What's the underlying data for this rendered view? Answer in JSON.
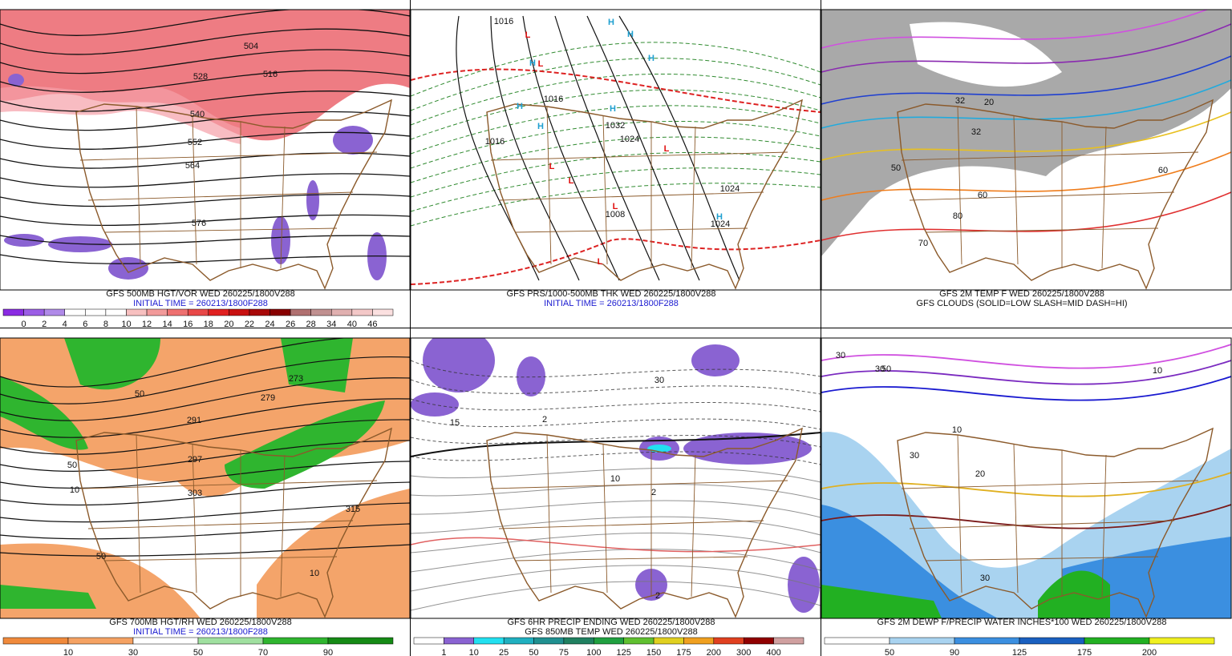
{
  "panels": [
    {
      "caption": [
        "GFS 500MB HGT/VOR WED 260225/1800V288",
        "INITIAL TIME = 260213/1800F288"
      ],
      "colorbar": [
        "0",
        "2",
        "4",
        "6",
        "8",
        "10",
        "12",
        "14",
        "16",
        "18",
        "20",
        "22",
        "24",
        "26",
        "28",
        "34",
        "40",
        "46"
      ],
      "labels": [
        "504",
        "516",
        "528",
        "540",
        "552",
        "564",
        "576"
      ]
    },
    {
      "caption": [
        "GFS PRS/1000-500MB THK WED 260225/1800V288",
        "INITIAL TIME = 260213/1800F288"
      ],
      "labels": [
        "1016",
        "1016",
        "1016",
        "1032",
        "1024",
        "1008",
        "1024",
        "1024"
      ],
      "symbols": [
        "L",
        "L",
        "L",
        "L",
        "L",
        "L",
        "L",
        "H",
        "H",
        "H",
        "H",
        "H",
        "H",
        "H",
        "H"
      ]
    },
    {
      "caption": [
        "GFS 2M TEMP F WED 260225/1800V288",
        "GFS CLOUDS (SOLID=LOW SLASH=MID DASH=HI)"
      ],
      "labels": [
        "32",
        "20",
        "32",
        "60",
        "70",
        "50",
        "80",
        "60"
      ]
    },
    {
      "caption": [
        "GFS 700MB HGT/RH WED 260225/1800V288",
        "INITIAL TIME = 260213/1800F288"
      ],
      "colorbar": [
        "10",
        "30",
        "50",
        "70",
        "90"
      ],
      "labels": [
        "50",
        "273",
        "279",
        "291",
        "297",
        "303",
        "315",
        "10",
        "50",
        "50",
        "10"
      ]
    },
    {
      "caption": [
        "GFS 6HR PRECIP ENDING WED 260225/1800V288",
        "GFS 850MB TEMP WED 260225/1800V288"
      ],
      "colorbar": [
        "1",
        "10",
        "25",
        "50",
        "75",
        "100",
        "125",
        "150",
        "175",
        "200",
        "300",
        "400"
      ],
      "labels": [
        "30",
        "2",
        "2",
        "10",
        "2",
        "15"
      ]
    },
    {
      "caption": [
        "GFS 2M DEWP F/PRECIP WATER INCHES*100 WED 260225/1800V288"
      ],
      "colorbar": [
        "50",
        "90",
        "125",
        "175",
        "200"
      ],
      "labels": [
        "30",
        "30",
        "50",
        "10",
        "30",
        "20",
        "30",
        "10"
      ]
    }
  ]
}
